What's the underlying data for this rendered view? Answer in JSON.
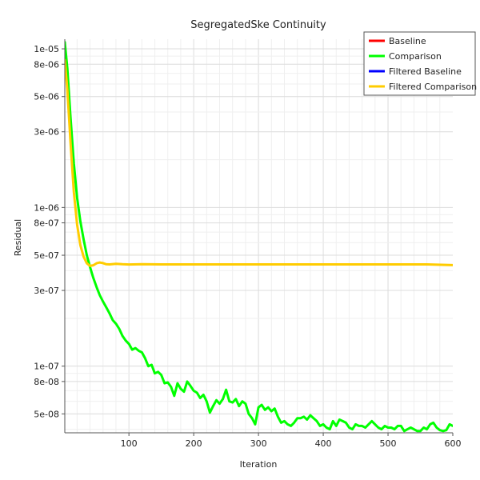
{
  "chart_data": {
    "type": "line",
    "title": "SegregatedSke Continuity",
    "xlabel": "Iteration",
    "ylabel": "Residual",
    "xscale": "linear",
    "yscale": "log",
    "xlim": [
      1,
      600
    ],
    "ylim": [
      3.8e-08,
      1.15e-05
    ],
    "grid": true,
    "legend_position": "top-right",
    "x_ticks": [
      100,
      200,
      300,
      400,
      500,
      600
    ],
    "x_tick_labels": [
      "100",
      "200",
      "300",
      "400",
      "500",
      "600"
    ],
    "y_major_ticks": [
      1e-05,
      8e-06,
      5e-06,
      3e-06,
      1e-06,
      8e-07,
      5e-07,
      3e-07,
      1e-07,
      8e-08,
      5e-08
    ],
    "y_tick_labels": [
      "1e-05",
      "8e-06",
      "5e-06",
      "3e-06",
      "1e-06",
      "8e-07",
      "5e-07",
      "3e-07",
      "1e-07",
      "8e-08",
      "5e-08"
    ],
    "series": [
      {
        "name": "Baseline",
        "color": "#ff0000",
        "x": [],
        "y": []
      },
      {
        "name": "Comparison",
        "color": "#00ff00",
        "x": [
          1,
          5,
          10,
          15,
          20,
          25,
          30,
          35,
          40,
          45,
          50,
          55,
          60,
          65,
          70,
          75,
          80,
          85,
          90,
          95,
          100,
          105,
          110,
          115,
          120,
          125,
          130,
          135,
          140,
          145,
          150,
          155,
          160,
          165,
          170,
          175,
          180,
          185,
          190,
          195,
          200,
          205,
          210,
          215,
          220,
          225,
          230,
          235,
          240,
          245,
          250,
          255,
          260,
          265,
          270,
          275,
          280,
          285,
          290,
          295,
          300,
          305,
          310,
          315,
          320,
          325,
          330,
          335,
          340,
          345,
          350,
          355,
          360,
          365,
          370,
          375,
          380,
          385,
          390,
          395,
          400,
          405,
          410,
          415,
          420,
          425,
          430,
          435,
          440,
          445,
          450,
          455,
          460,
          465,
          470,
          475,
          480,
          485,
          490,
          495,
          500,
          505,
          510,
          515,
          520,
          525,
          530,
          535,
          540,
          545,
          550,
          555,
          560,
          565,
          570,
          575,
          580,
          585,
          590,
          595,
          600
        ],
        "y": [
          1.1e-05,
          7.5e-06,
          3.6e-06,
          1.9e-06,
          1.15e-06,
          8.2e-07,
          6.3e-07,
          5e-07,
          4.2e-07,
          3.6e-07,
          3.15e-07,
          2.8e-07,
          2.55e-07,
          2.35e-07,
          2.15e-07,
          1.95e-07,
          1.85e-07,
          1.72e-07,
          1.55e-07,
          1.45e-07,
          1.38e-07,
          1.27e-07,
          1.3e-07,
          1.25e-07,
          1.22e-07,
          1.12e-07,
          1e-07,
          1.02e-07,
          9e-08,
          9.2e-08,
          8.8e-08,
          7.8e-08,
          7.9e-08,
          7.4e-08,
          6.5e-08,
          7.8e-08,
          7.2e-08,
          6.9e-08,
          8e-08,
          7.5e-08,
          7e-08,
          6.8e-08,
          6.3e-08,
          6.6e-08,
          6e-08,
          5.1e-08,
          5.6e-08,
          6.1e-08,
          5.8e-08,
          6.2e-08,
          7.1e-08,
          6e-08,
          5.9e-08,
          6.2e-08,
          5.6e-08,
          6e-08,
          5.8e-08,
          5e-08,
          4.7e-08,
          4.3e-08,
          5.5e-08,
          5.7e-08,
          5.3e-08,
          5.5e-08,
          5.2e-08,
          5.4e-08,
          4.8e-08,
          4.4e-08,
          4.5e-08,
          4.3e-08,
          4.2e-08,
          4.4e-08,
          4.7e-08,
          4.7e-08,
          4.8e-08,
          4.6e-08,
          4.9e-08,
          4.7e-08,
          4.5e-08,
          4.2e-08,
          4.3e-08,
          4.1e-08,
          4e-08,
          4.5e-08,
          4.2e-08,
          4.6e-08,
          4.5e-08,
          4.4e-08,
          4.1e-08,
          4e-08,
          4.3e-08,
          4.2e-08,
          4.2e-08,
          4.1e-08,
          4.3e-08,
          4.5e-08,
          4.3e-08,
          4.1e-08,
          4e-08,
          4.2e-08,
          4.1e-08,
          4.1e-08,
          4e-08,
          4.2e-08,
          4.2e-08,
          3.9e-08,
          4e-08,
          4.1e-08,
          4e-08,
          3.9e-08,
          3.9e-08,
          4.1e-08,
          4e-08,
          4.3e-08,
          4.4e-08,
          4.1e-08,
          3.95e-08,
          3.9e-08,
          3.95e-08,
          4.3e-08,
          4.2e-08
        ]
      },
      {
        "name": "Filtered Baseline",
        "color": "#0000ff",
        "x": [],
        "y": []
      },
      {
        "name": "Filtered Comparison",
        "color": "#ffcc00",
        "x": [
          1,
          5,
          10,
          15,
          20,
          25,
          30,
          35,
          40,
          45,
          50,
          55,
          60,
          65,
          70,
          80,
          90,
          100,
          120,
          150,
          200,
          300,
          400,
          500,
          560,
          600
        ],
        "y": [
          8.5e-06,
          5.5e-06,
          2.5e-06,
          1.25e-06,
          7.8e-07,
          5.8e-07,
          4.9e-07,
          4.45e-07,
          4.28e-07,
          4.32e-07,
          4.45e-07,
          4.5e-07,
          4.46e-07,
          4.39e-07,
          4.38e-07,
          4.42e-07,
          4.39e-07,
          4.37e-07,
          4.39e-07,
          4.38e-07,
          4.38e-07,
          4.38e-07,
          4.38e-07,
          4.38e-07,
          4.38e-07,
          4.33e-07
        ]
      }
    ]
  }
}
